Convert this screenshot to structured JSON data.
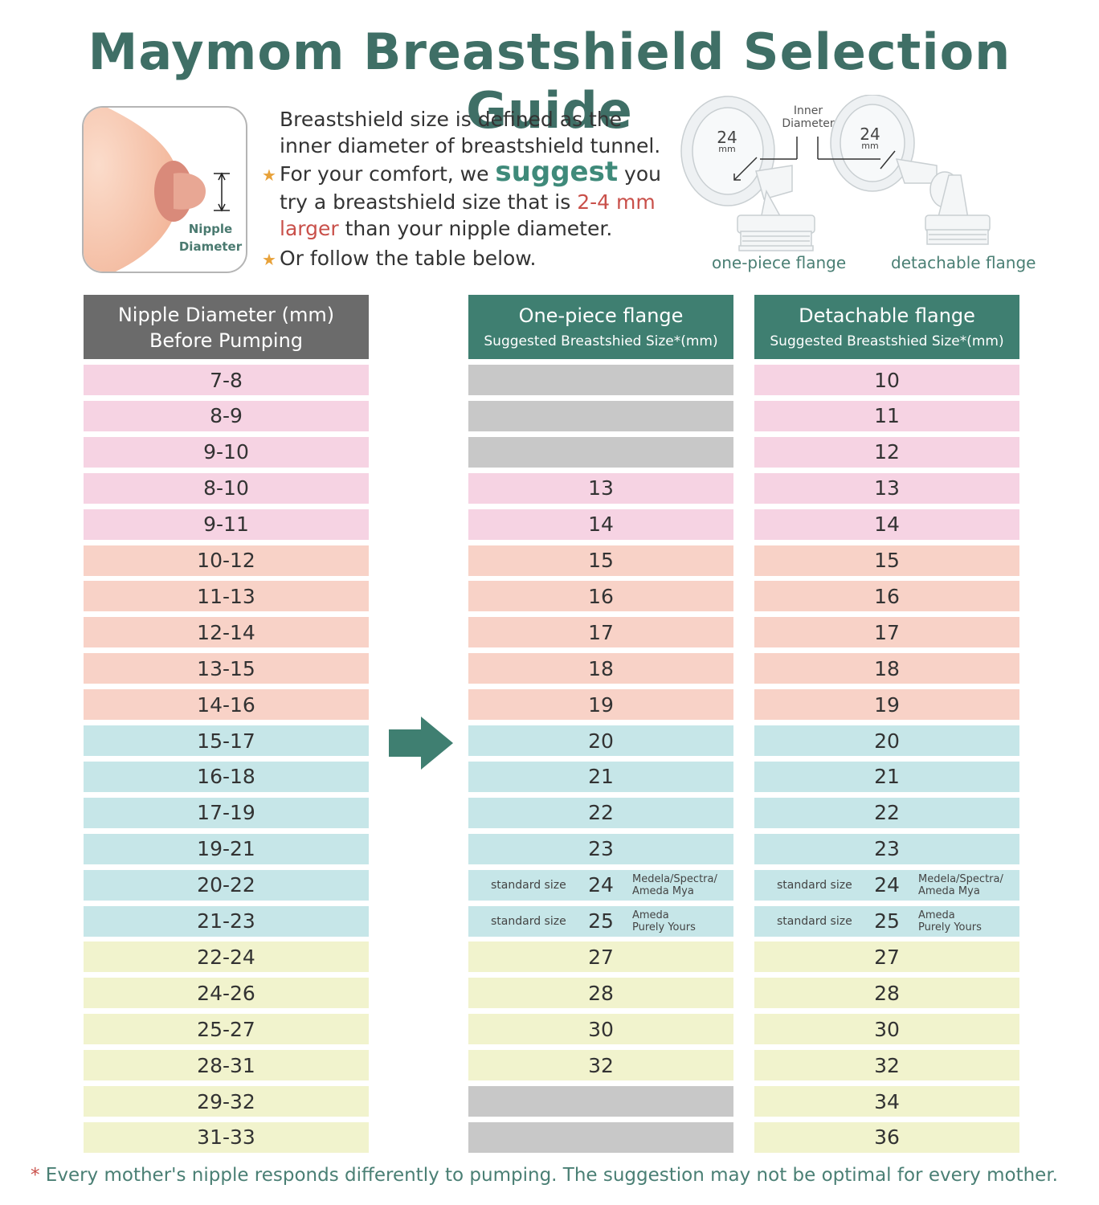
{
  "title": "Maymom Breastshield Selection Guide",
  "nipple_illustration": {
    "label_line1": "Nipple",
    "label_line2": "Diameter"
  },
  "description": {
    "line1": "Breastshield size is defined as the",
    "line2": "inner diameter of breastshield tunnel.",
    "line3_a": "For your comfort, we ",
    "line3_suggest": "suggest",
    "line3_b": " you",
    "line4_a": "try a breastshield size that is ",
    "line4_red": "2-4 mm",
    "line5_red": "larger",
    "line5_b": " than your nipple diameter.",
    "line6": "Or follow the table below.",
    "star": "★"
  },
  "flange_illustration": {
    "inner_line1": "Inner",
    "inner_line2": "Diameter",
    "left_size": "24",
    "left_unit": "mm",
    "right_size": "24",
    "right_unit": "mm",
    "left_caption": "one-piece flange",
    "right_caption": "detachable flange"
  },
  "table": {
    "headers": {
      "nipple_line1": "Nipple Diameter (mm)",
      "nipple_line2": "Before Pumping",
      "onepiece_line1": "One-piece flange",
      "onepiece_line2": "Suggested Breastshied Size*(mm)",
      "detachable_line1": "Detachable flange",
      "detachable_line2": "Suggested Breastshied Size*(mm)"
    },
    "rows": [
      {
        "nipple": "7-8",
        "onepiece": "",
        "detachable": "10",
        "color": "pink"
      },
      {
        "nipple": "8-9",
        "onepiece": "",
        "detachable": "11",
        "color": "pink"
      },
      {
        "nipple": "9-10",
        "onepiece": "",
        "detachable": "12",
        "color": "pink"
      },
      {
        "nipple": "8-10",
        "onepiece": "13",
        "detachable": "13",
        "color": "pink"
      },
      {
        "nipple": "9-11",
        "onepiece": "14",
        "detachable": "14",
        "color": "pink"
      },
      {
        "nipple": "10-12",
        "onepiece": "15",
        "detachable": "15",
        "color": "peach"
      },
      {
        "nipple": "11-13",
        "onepiece": "16",
        "detachable": "16",
        "color": "peach"
      },
      {
        "nipple": "12-14",
        "onepiece": "17",
        "detachable": "17",
        "color": "peach"
      },
      {
        "nipple": "13-15",
        "onepiece": "18",
        "detachable": "18",
        "color": "peach"
      },
      {
        "nipple": "14-16",
        "onepiece": "19",
        "detachable": "19",
        "color": "peach"
      },
      {
        "nipple": "15-17",
        "onepiece": "20",
        "detachable": "20",
        "color": "blue"
      },
      {
        "nipple": "16-18",
        "onepiece": "21",
        "detachable": "21",
        "color": "blue"
      },
      {
        "nipple": "17-19",
        "onepiece": "22",
        "detachable": "22",
        "color": "blue"
      },
      {
        "nipple": "19-21",
        "onepiece": "23",
        "detachable": "23",
        "color": "blue"
      },
      {
        "nipple": "20-22",
        "onepiece": "24",
        "detachable": "24",
        "color": "blue",
        "note_left": "standard size",
        "note_right_1": "Medela/Spectra/",
        "note_right_2": "Ameda Mya"
      },
      {
        "nipple": "21-23",
        "onepiece": "25",
        "detachable": "25",
        "color": "blue",
        "note_left": "standard size",
        "note_right_1": "Ameda",
        "note_right_2": "Purely Yours"
      },
      {
        "nipple": "22-24",
        "onepiece": "27",
        "detachable": "27",
        "color": "yellow"
      },
      {
        "nipple": "24-26",
        "onepiece": "28",
        "detachable": "28",
        "color": "yellow"
      },
      {
        "nipple": "25-27",
        "onepiece": "30",
        "detachable": "30",
        "color": "yellow"
      },
      {
        "nipple": "28-31",
        "onepiece": "32",
        "detachable": "32",
        "color": "yellow"
      },
      {
        "nipple": "29-32",
        "onepiece": "",
        "detachable": "34",
        "color": "yellow"
      },
      {
        "nipple": "31-33",
        "onepiece": "",
        "detachable": "36",
        "color": "yellow"
      }
    ]
  },
  "footnote": {
    "asterisk": "*",
    "text": " Every mother's nipple responds differently to pumping. The suggestion may not be optimal for every mother."
  },
  "colors": {
    "title": "#3f6f66",
    "header_gray": "#6b6b6b",
    "header_green": "#3f7f71",
    "pink": "#f6d3e3",
    "peach": "#f8d2c7",
    "blue": "#c6e6e8",
    "yellow": "#f1f3cd",
    "empty": "#c8c8c8",
    "arrow": "#3f7f71"
  }
}
